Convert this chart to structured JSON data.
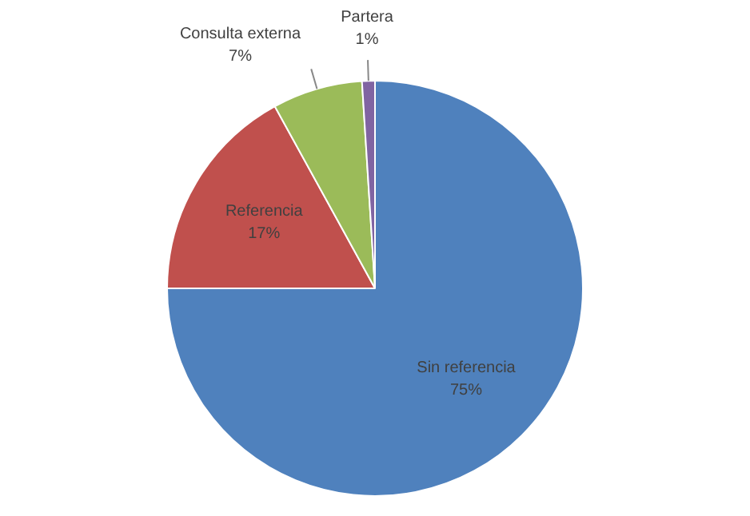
{
  "chart_data": {
    "type": "pie",
    "categories": [
      "Sin referencia",
      "Referencia",
      "Consulta externa",
      "Partera"
    ],
    "values": [
      75,
      17,
      7,
      1
    ],
    "colors": [
      "#4f81bd",
      "#c0504d",
      "#9bbb59",
      "#8064a2"
    ],
    "value_labels": [
      "75%",
      "17%",
      "7%",
      "1%"
    ],
    "legend": false
  }
}
